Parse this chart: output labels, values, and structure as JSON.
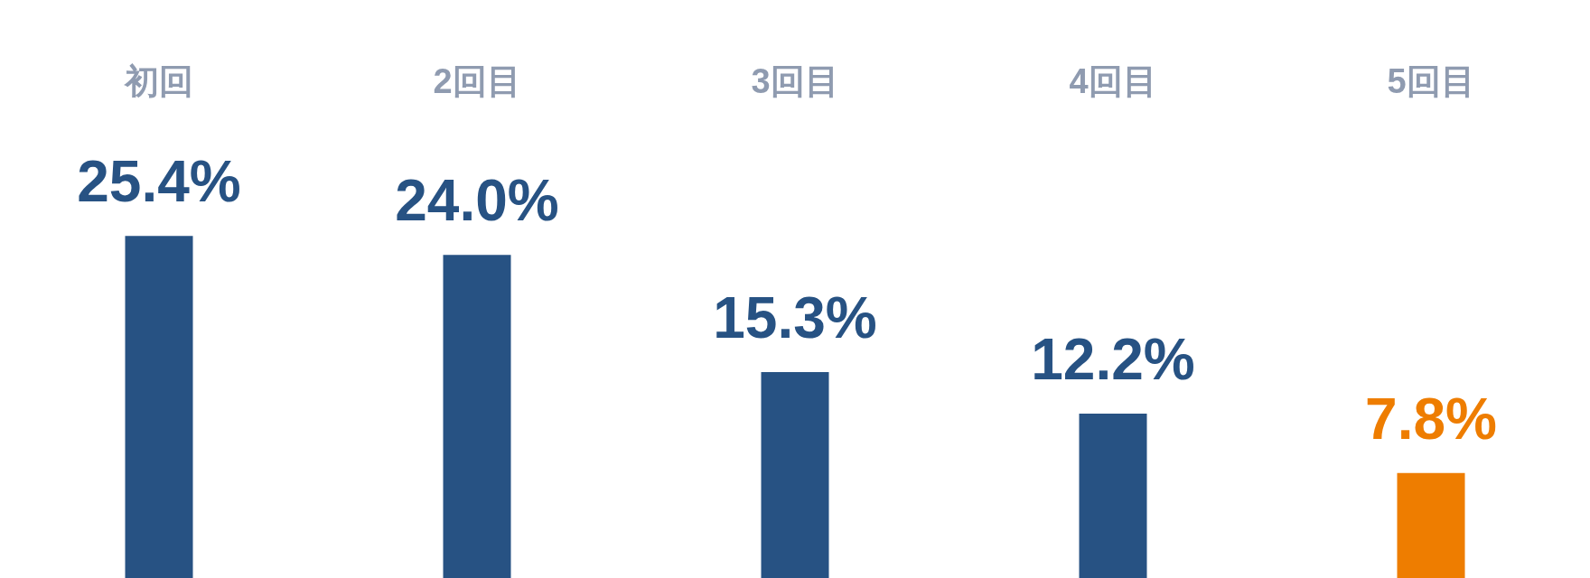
{
  "chart_data": {
    "type": "bar",
    "categories": [
      "初回",
      "2回目",
      "3回目",
      "4回目",
      "5回目"
    ],
    "values": [
      25.4,
      24.0,
      15.3,
      12.2,
      7.8
    ],
    "value_labels": [
      "25.4%",
      "24.0%",
      "15.3%",
      "12.2%",
      "7.8%"
    ],
    "colors": [
      "#275283",
      "#275283",
      "#275283",
      "#275283",
      "#ee7d00"
    ]
  }
}
